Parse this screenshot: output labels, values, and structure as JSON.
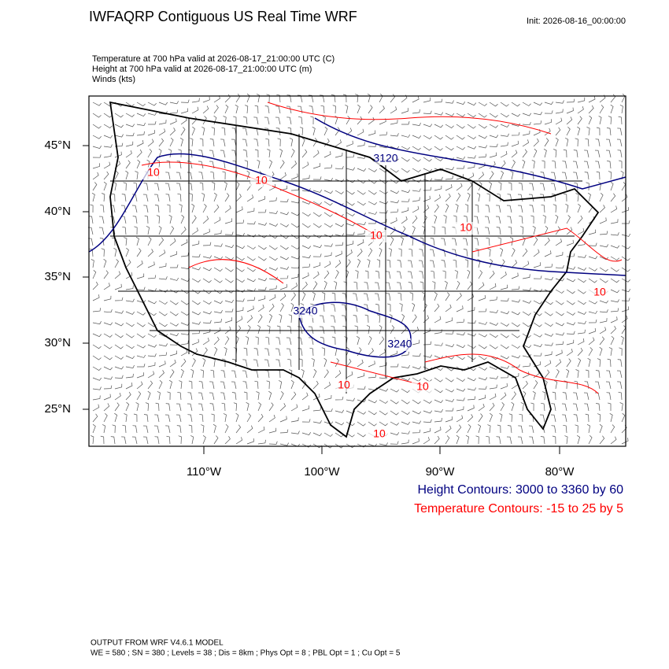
{
  "header": {
    "title": "IWFAQRP Contiguous US Real Time WRF",
    "init": "Init: 2026-08-16_00:00:00"
  },
  "subtitle": [
    "Temperature at 700 hPa valid at 2026-08-17_21:00:00 UTC   (C)",
    "Height at 700 hPa valid at 2026-08-17_21:00:00 UTC   (m)",
    "Winds   (kts)"
  ],
  "map": {
    "lat_labels": [
      "45°N",
      "40°N",
      "35°N",
      "30°N",
      "25°N"
    ],
    "lon_labels": [
      "110°W",
      "100°W",
      "90°W",
      "80°W"
    ],
    "contour_labels": [
      {
        "text": "3120",
        "color": "#000080"
      },
      {
        "text": "3240",
        "color": "#000080"
      },
      {
        "text": "3240",
        "color": "#000080"
      },
      {
        "text": "10",
        "color": "#ff0000"
      },
      {
        "text": "10",
        "color": "#ff0000"
      },
      {
        "text": "10",
        "color": "#ff0000"
      },
      {
        "text": "10",
        "color": "#ff0000"
      },
      {
        "text": "10",
        "color": "#ff0000"
      },
      {
        "text": "10",
        "color": "#ff0000"
      },
      {
        "text": "10",
        "color": "#ff0000"
      },
      {
        "text": "10",
        "color": "#ff0000"
      }
    ]
  },
  "legend": [
    {
      "text": "Height Contours: 3000 to 3360 by 60",
      "color": "#000080"
    },
    {
      "text": "Temperature Contours: -15 to 25 by 5",
      "color": "#ff0000"
    }
  ],
  "footer": [
    "OUTPUT FROM WRF V4.6.1 MODEL",
    "WE = 580 ; SN = 380 ; Levels = 38 ; Dis = 8km ; Phys Opt = 8 ; PBL Opt = 1 ; Cu Opt = 5"
  ]
}
